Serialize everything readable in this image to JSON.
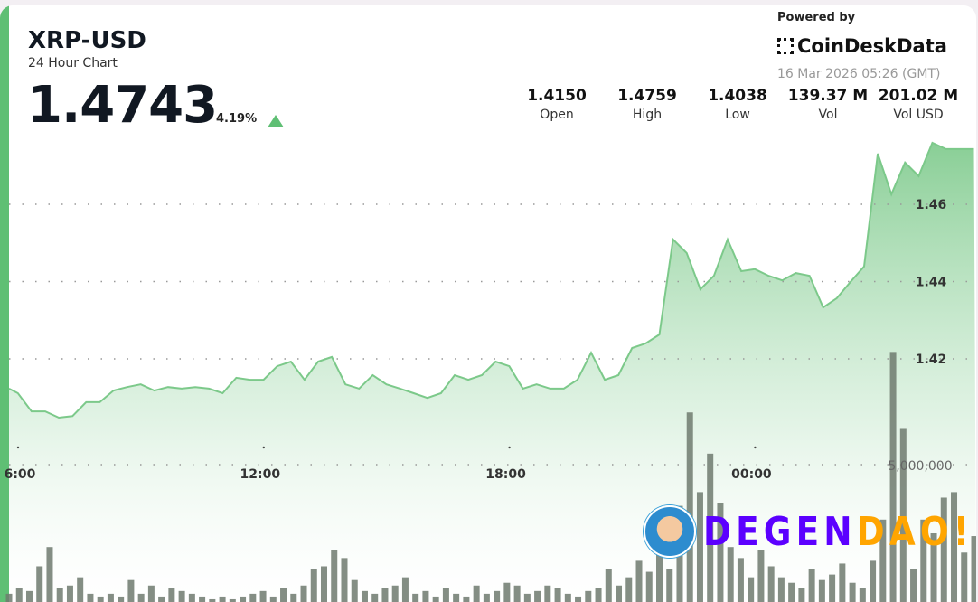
{
  "header": {
    "symbol": "XRP-USD",
    "subtitle": "24 Hour Chart",
    "price": "1.4743",
    "change": "4.19%",
    "change_direction": "up",
    "powered_by": "Powered by",
    "brand": "CoinDeskData",
    "timestamp": "16 Mar 2026 05:26 (GMT)"
  },
  "stats": [
    {
      "value": "1.4150",
      "label": "Open"
    },
    {
      "value": "1.4759",
      "label": "High"
    },
    {
      "value": "1.4038",
      "label": "Low"
    },
    {
      "value": "139.37 M",
      "label": "Vol"
    },
    {
      "value": "201.02 M",
      "label": "Vol USD"
    }
  ],
  "watermark": {
    "text_a": "DEGEN",
    "text_b": "DAO!",
    "color_a": "#5b00ff",
    "color_b": "#ffa500"
  },
  "colors": {
    "accent": "#5fbf74",
    "line": "#7cc98a",
    "volume": "#6f7a6f"
  },
  "chart_data": {
    "type": "area",
    "title": "",
    "x_ticks": [
      "6:00",
      "12:00",
      "18:00",
      "00:00"
    ],
    "y_ticks": [
      1.42,
      1.44,
      1.46
    ],
    "y_tick_labels": [
      "1.42",
      "1.44",
      "1.46"
    ],
    "ylim": [
      1.395,
      1.476
    ],
    "grid": "dotted horizontal",
    "price_series": {
      "x": [
        "05:45",
        "06:05",
        "06:25",
        "06:45",
        "07:05",
        "07:25",
        "07:45",
        "08:05",
        "08:25",
        "08:45",
        "09:05",
        "09:25",
        "09:45",
        "10:05",
        "10:25",
        "10:45",
        "11:05",
        "11:25",
        "11:45",
        "12:05",
        "12:25",
        "12:45",
        "13:05",
        "13:25",
        "13:45",
        "14:05",
        "14:25",
        "14:45",
        "15:05",
        "15:25",
        "15:45",
        "16:05",
        "16:25",
        "16:45",
        "17:05",
        "17:25",
        "17:45",
        "18:05",
        "18:25",
        "18:45",
        "19:05",
        "19:25",
        "19:45",
        "20:05",
        "20:25",
        "20:45",
        "21:05",
        "21:25",
        "21:45",
        "22:05",
        "22:25",
        "22:45",
        "23:05",
        "23:25",
        "23:45",
        "00:05",
        "00:25",
        "00:45",
        "01:05",
        "01:25",
        "01:45",
        "02:05",
        "02:25",
        "02:45",
        "03:05",
        "03:25",
        "03:45",
        "04:05",
        "04:25",
        "04:45",
        "05:05",
        "05:26"
      ],
      "values": [
        1.4123,
        1.4111,
        1.4064,
        1.4064,
        1.4048,
        1.4052,
        1.4088,
        1.4088,
        1.4118,
        1.4127,
        1.4134,
        1.4118,
        1.4127,
        1.4123,
        1.4127,
        1.4123,
        1.4111,
        1.4151,
        1.4146,
        1.4146,
        1.4181,
        1.4193,
        1.4146,
        1.4193,
        1.4205,
        1.4134,
        1.4123,
        1.4158,
        1.4134,
        1.4123,
        1.4111,
        1.4099,
        1.4111,
        1.4158,
        1.4146,
        1.4158,
        1.4193,
        1.4181,
        1.4123,
        1.4134,
        1.4123,
        1.4123,
        1.4146,
        1.4216,
        1.4146,
        1.4158,
        1.4228,
        1.424,
        1.4263,
        1.4509,
        1.4474,
        1.438,
        1.4415,
        1.4509,
        1.4427,
        1.4432,
        1.4415,
        1.4403,
        1.4422,
        1.4415,
        1.4333,
        1.4357,
        1.4399,
        1.4439,
        1.4731,
        1.4626,
        1.4708,
        1.4673,
        1.4759,
        1.4743,
        1.4743,
        1.4743
      ]
    },
    "volume_series": {
      "y_tick_label": "5,000,000",
      "y_tick": 5000000,
      "values_millions": [
        0.3,
        0.5,
        0.4,
        1.3,
        2.0,
        0.5,
        0.6,
        0.9,
        0.3,
        0.2,
        0.3,
        0.2,
        0.8,
        0.3,
        0.6,
        0.2,
        0.5,
        0.4,
        0.3,
        0.2,
        0.1,
        0.2,
        0.1,
        0.2,
        0.3,
        0.4,
        0.2,
        0.5,
        0.3,
        0.6,
        1.2,
        1.3,
        1.9,
        1.6,
        0.8,
        0.4,
        0.3,
        0.5,
        0.6,
        0.9,
        0.3,
        0.4,
        0.2,
        0.5,
        0.3,
        0.2,
        0.6,
        0.3,
        0.4,
        0.7,
        0.6,
        0.3,
        0.4,
        0.6,
        0.5,
        0.3,
        0.2,
        0.4,
        0.5,
        1.2,
        0.6,
        0.9,
        1.5,
        1.1,
        1.8,
        1.2,
        3.5,
        6.9,
        4.0,
        5.4,
        3.6,
        2.0,
        1.6,
        0.9,
        1.9,
        1.3,
        0.9,
        0.7,
        0.5,
        1.2,
        0.8,
        1.0,
        1.4,
        0.7,
        0.5,
        1.5,
        3.0,
        9.1,
        6.3,
        1.2,
        3.0,
        2.5,
        3.8,
        4.0,
        1.8,
        2.4
      ]
    }
  }
}
